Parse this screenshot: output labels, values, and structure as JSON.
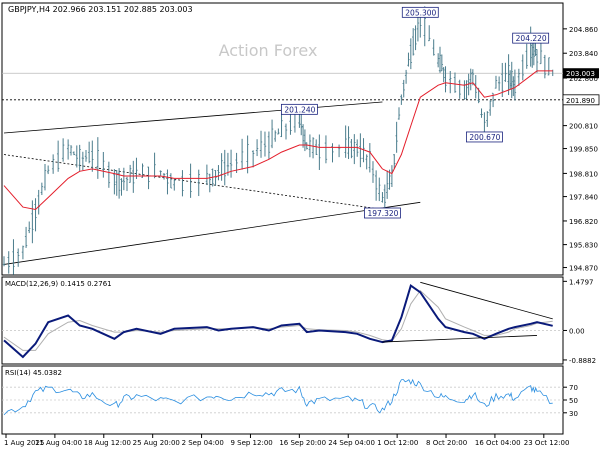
{
  "header": {
    "symbol_line": "GBPJPY,H4 202.966 203.151 202.885 203.003",
    "watermark": "Action Forex"
  },
  "chart_data": [
    {
      "type": "line",
      "name": "price",
      "title": "GBPJPY,H4",
      "ohlc_last": {
        "open": 202.966,
        "high": 203.151,
        "low": 202.885,
        "close": 203.003
      },
      "ylim": [
        194.6,
        205.9
      ],
      "y_ticks": [
        "204.860",
        "203.840",
        "202.800",
        "201.890",
        "200.810",
        "199.850",
        "198.810",
        "197.840",
        "196.820",
        "195.830",
        "194.870"
      ],
      "x": [
        "2025-08-01 00:00",
        "2025-08-04 00:00",
        "2025-08-06 00:00",
        "2025-08-08 00:00",
        "2025-08-11 04:00",
        "2025-08-13 00:00",
        "2025-08-15 00:00",
        "2025-08-18 12:00",
        "2025-08-20 00:00",
        "2025-08-22 00:00",
        "2025-08-25 20:00",
        "2025-08-28 00:00",
        "2025-09-02 04:00",
        "2025-09-04 00:00",
        "2025-09-06 00:00",
        "2025-09-09 12:00",
        "2025-09-12 00:00",
        "2025-09-14 00:00",
        "2025-09-16 20:00",
        "2025-09-18 00:00",
        "2025-09-20 00:00",
        "2025-09-24 04:00",
        "2025-09-26 00:00",
        "2025-09-28 00:00",
        "2025-09-30 00:00",
        "2025-10-01 12:00",
        "2025-10-03 00:00",
        "2025-10-04 12:00",
        "2025-10-06 00:00",
        "2025-10-08 20:00",
        "2025-10-10 00:00",
        "2025-10-13 00:00",
        "2025-10-14 08:00",
        "2025-10-16 04:00",
        "2025-10-18 00:00",
        "2025-10-20 00:00",
        "2025-10-21 00:00",
        "2025-10-23 12:00",
        "2025-10-24 12:00",
        "2025-10-27 00:00"
      ],
      "series": [
        {
          "values": [
            195.0,
            195.6,
            197.3,
            198.9,
            199.9,
            199.4,
            199.6,
            198.6,
            198.5,
            198.8,
            198.9,
            198.4,
            198.6,
            198.9,
            199.2,
            199.7,
            200.1,
            200.6,
            201.1,
            200.0,
            199.8,
            199.9,
            199.9,
            199.3,
            197.7,
            198.6,
            202.0,
            203.9,
            205.3,
            203.5,
            202.9,
            202.3,
            203.0,
            200.7,
            202.5,
            202.9,
            202.5,
            204.1,
            203.8,
            203.0
          ]
        },
        {
          "values": [
            198.3,
            197.4,
            197.3,
            197.8,
            198.6,
            198.9,
            199.0,
            198.8,
            198.7,
            198.7,
            198.7,
            198.6,
            198.6,
            198.7,
            198.9,
            199.1,
            199.4,
            199.7,
            200.0,
            200.0,
            199.9,
            199.9,
            199.9,
            199.7,
            199.0,
            198.8,
            199.6,
            200.8,
            202.0,
            202.5,
            202.6,
            202.5,
            202.6,
            202.0,
            202.1,
            202.3,
            202.4,
            202.9,
            203.1,
            203.1
          ]
        }
      ],
      "annotations": [
        {
          "label": "205.300",
          "x": "2025-10-06 00:00",
          "y": 205.3
        },
        {
          "label": "204.220",
          "x": "2025-10-23 12:00",
          "y": 204.22
        },
        {
          "label": "201.240",
          "x": "2025-09-16 20:00",
          "y": 201.24
        },
        {
          "label": "200.670",
          "x": "2025-10-16 04:00",
          "y": 200.67
        },
        {
          "label": "197.320",
          "x": "2025-09-30 00:00",
          "y": 197.32
        }
      ],
      "horizontal_levels": [
        {
          "label": "203.003",
          "y": 203.003,
          "style": "solid-black-tag"
        },
        {
          "label": "201.890",
          "y": 201.89,
          "style": "dotted"
        }
      ],
      "trendlines": [
        {
          "from": [
            "2025-08-01 00:00",
            200.5
          ],
          "to": [
            "2025-09-30 00:00",
            201.8
          ],
          "style": "solid"
        },
        {
          "from": [
            "2025-08-01 00:00",
            195.0
          ],
          "to": [
            "2025-10-06 00:00",
            197.6
          ],
          "style": "solid"
        },
        {
          "from": [
            "2025-08-01 00:00",
            199.6
          ],
          "to": [
            "2025-09-30 00:00",
            197.3
          ],
          "style": "dotted"
        }
      ],
      "colors": {
        "price": "#4a7c8c",
        "ma": "#e41e2b"
      },
      "grid": false
    },
    {
      "type": "line",
      "name": "macd",
      "title": "MACD(12,26,9) 0.1415 0.2761",
      "values_last": {
        "macd": 0.1415,
        "signal": 0.2761
      },
      "ylim": [
        -0.95,
        1.55
      ],
      "y_ticks": [
        "1.4797",
        "0.00",
        "-0.8882"
      ],
      "series": [
        {
          "values": [
            -0.3,
            -0.8,
            -0.4,
            0.25,
            0.45,
            0.15,
            0.05,
            -0.25,
            -0.05,
            0.05,
            -0.1,
            0.05,
            0.1,
            0.0,
            0.05,
            0.1,
            0.0,
            0.15,
            0.2,
            -0.05,
            0.0,
            -0.05,
            -0.1,
            -0.25,
            -0.35,
            -0.3,
            0.4,
            1.35,
            1.15,
            0.35,
            0.1,
            -0.05,
            -0.1,
            -0.25,
            -0.1,
            0.05,
            0.1,
            0.2,
            0.25,
            0.14
          ]
        },
        {
          "values": [
            -0.2,
            -0.6,
            -0.6,
            -0.1,
            0.25,
            0.3,
            0.15,
            -0.05,
            -0.05,
            0.0,
            -0.05,
            0.0,
            0.05,
            0.05,
            0.05,
            0.08,
            0.05,
            0.1,
            0.15,
            0.05,
            0.02,
            0.0,
            -0.05,
            -0.15,
            -0.28,
            -0.32,
            0.05,
            0.8,
            1.2,
            0.7,
            0.35,
            0.1,
            0.0,
            -0.15,
            -0.15,
            -0.05,
            0.05,
            0.15,
            0.22,
            0.28
          ]
        }
      ],
      "trendlines": [
        {
          "from": [
            "2025-10-06 00:00",
            1.45
          ],
          "to": [
            "2025-10-27 00:00",
            0.35
          ]
        },
        {
          "from": [
            "2025-09-30 00:00",
            -0.35
          ],
          "to": [
            "2025-10-24 12:00",
            -0.15
          ]
        }
      ],
      "colors": {
        "macd": "#0a1a7a",
        "signal": "#b0b0b0"
      }
    },
    {
      "type": "line",
      "name": "rsi",
      "title": "RSI(14) 45.0382",
      "value_last": 45.0382,
      "ylim": [
        0,
        100
      ],
      "y_ticks": [
        "70",
        "50",
        "30"
      ],
      "series": [
        {
          "values": [
            30,
            40,
            62,
            68,
            66,
            55,
            58,
            40,
            52,
            56,
            50,
            48,
            55,
            58,
            52,
            62,
            60,
            64,
            66,
            45,
            50,
            52,
            48,
            40,
            34,
            50,
            78,
            80,
            74,
            56,
            54,
            50,
            60,
            40,
            56,
            58,
            52,
            70,
            62,
            45
          ]
        }
      ],
      "colors": {
        "rsi": "#2a8ee0"
      }
    }
  ],
  "x_axis": {
    "labels": [
      "1 Aug 2025",
      "11 Aug 04:00",
      "18 Aug 12:00",
      "25 Aug 20:00",
      "2 Sep 04:00",
      "9 Sep 12:00",
      "16 Sep 20:00",
      "24 Sep 04:00",
      "1 Oct 12:00",
      "8 Oct 20:00",
      "16 Oct 04:00",
      "23 Oct 12:00"
    ]
  }
}
